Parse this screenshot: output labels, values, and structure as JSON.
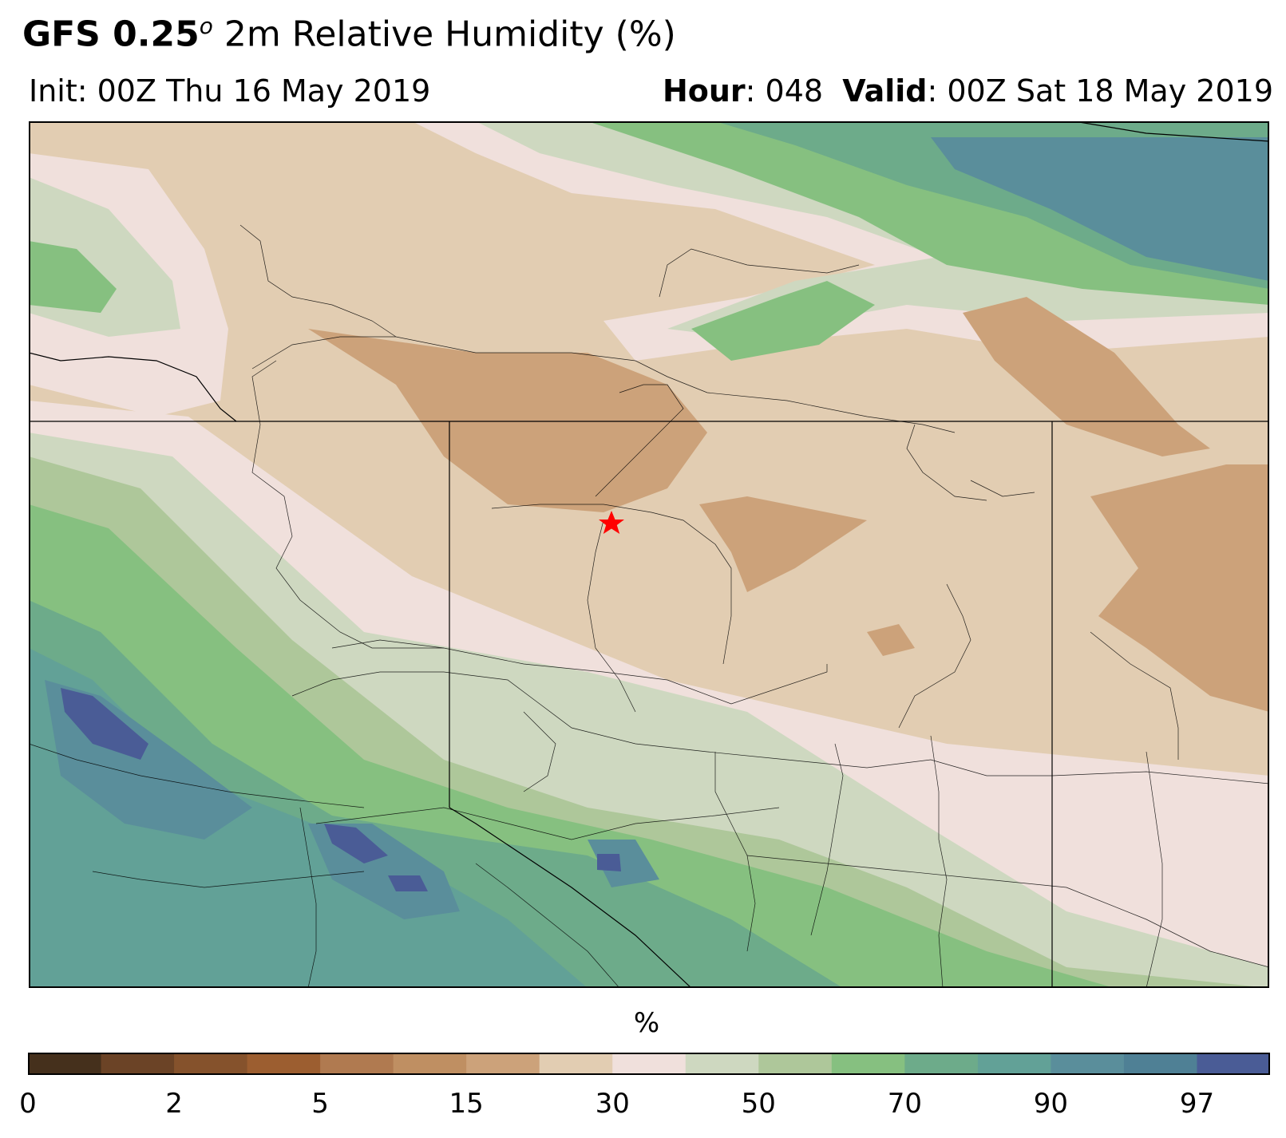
{
  "title": {
    "model": "GFS 0.25",
    "degree": "o",
    "variable": "2m Relative Humidity (%)"
  },
  "subtitle": {
    "init": "Init: 00Z Thu 16 May 2019",
    "hour_label": "Hour",
    "hour_value": ": 048",
    "valid_label": "Valid",
    "valid_value": ": 00Z Sat 18 May 2019"
  },
  "colorbar": {
    "unit": "%",
    "ticks": [
      "0",
      "2",
      "5",
      "15",
      "30",
      "50",
      "70",
      "90",
      "97"
    ],
    "colors": [
      "#45301c",
      "#6b4326",
      "#85522c",
      "#9c5e30",
      "#b07a50",
      "#bf8f62",
      "#cca27a",
      "#e2cdb2",
      "#f0e0dc",
      "#ced8c0",
      "#aec79a",
      "#86c080",
      "#6dab8a",
      "#62a197",
      "#5a8e9b",
      "#4f8095",
      "#4a5c96"
    ]
  },
  "colors": {
    "map_background": "#e2cdb2",
    "marker": "#ff0000",
    "boundaries": "#000000"
  },
  "marker": {
    "symbol": "star"
  }
}
